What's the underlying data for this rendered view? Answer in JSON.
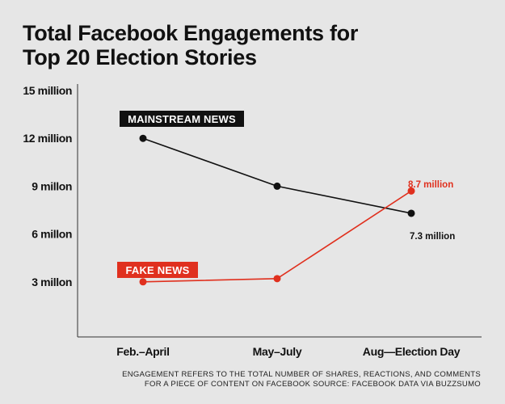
{
  "title_lines": [
    "Total Facebook Engagements for",
    "Top 20 Election Stories"
  ],
  "note_lines": [
    "ENGAGEMENT REFERS TO THE TOTAL NUMBER OF SHARES, REACTIONS, AND COMMENTS",
    "FOR A PIECE OF CONTENT ON FACEBOOK SOURCE: FACEBOOK DATA VIA BUZZSUMO"
  ],
  "colors": {
    "mainstream": "#111111",
    "fake": "#e0301e",
    "axis": "#333333",
    "background": "#e6e6e6"
  },
  "chart_data": {
    "type": "line",
    "title": "Total Facebook Engagements for Top 20 Election Stories",
    "categories": [
      "Feb.–April",
      "May–July",
      "Aug—Election Day"
    ],
    "ylim": [
      0,
      15
    ],
    "y_unit": "million",
    "y_ticks": [
      {
        "value": 3,
        "label": "3 millon"
      },
      {
        "value": 6,
        "label": "6 millon"
      },
      {
        "value": 9,
        "label": "9 millon"
      },
      {
        "value": 12,
        "label": "12 million"
      },
      {
        "value": 15,
        "label": "15 million"
      }
    ],
    "series": [
      {
        "name": "MAINSTREAM NEWS",
        "values": [
          12,
          9,
          7.3
        ],
        "color": "#111111",
        "end_label": "7.3 million"
      },
      {
        "name": "FAKE NEWS",
        "values": [
          3,
          3.2,
          8.7
        ],
        "color": "#e0301e",
        "end_label": "8.7 million"
      }
    ],
    "grid": false,
    "legend": "inline labels"
  }
}
